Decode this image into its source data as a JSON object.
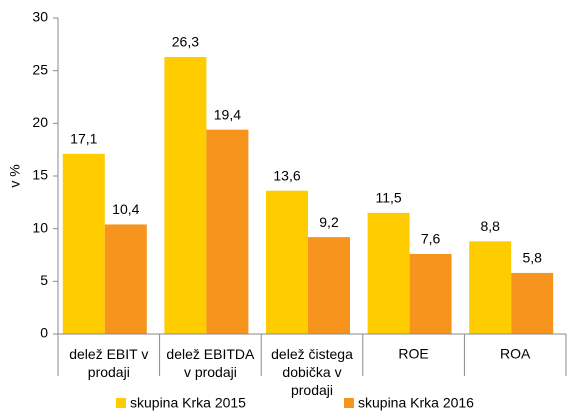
{
  "chart_data": {
    "type": "bar",
    "y_label": "v %",
    "categories": [
      "delež EBIT v\nprodaji",
      "delež EBITDA\nv prodaji",
      "delež čistega\ndobička  v\nprodaji",
      "ROE",
      "ROA"
    ],
    "series": [
      {
        "name": "skupina Krka 2015",
        "color": "#FFCC00",
        "values": [
          17.1,
          26.3,
          13.6,
          11.5,
          8.8
        ],
        "value_labels": [
          "17,1",
          "26,3",
          "13,6",
          "11,5",
          "8,8"
        ]
      },
      {
        "name": "skupina Krka 2016",
        "color": "#F7941D",
        "values": [
          10.4,
          19.4,
          9.2,
          7.6,
          5.8
        ],
        "value_labels": [
          "10,4",
          "19,4",
          "9,2",
          "7,6",
          "5,8"
        ]
      }
    ],
    "ylim": [
      0,
      30
    ],
    "yticks": [
      0,
      5,
      10,
      15,
      20,
      25,
      30
    ],
    "grid": false
  }
}
